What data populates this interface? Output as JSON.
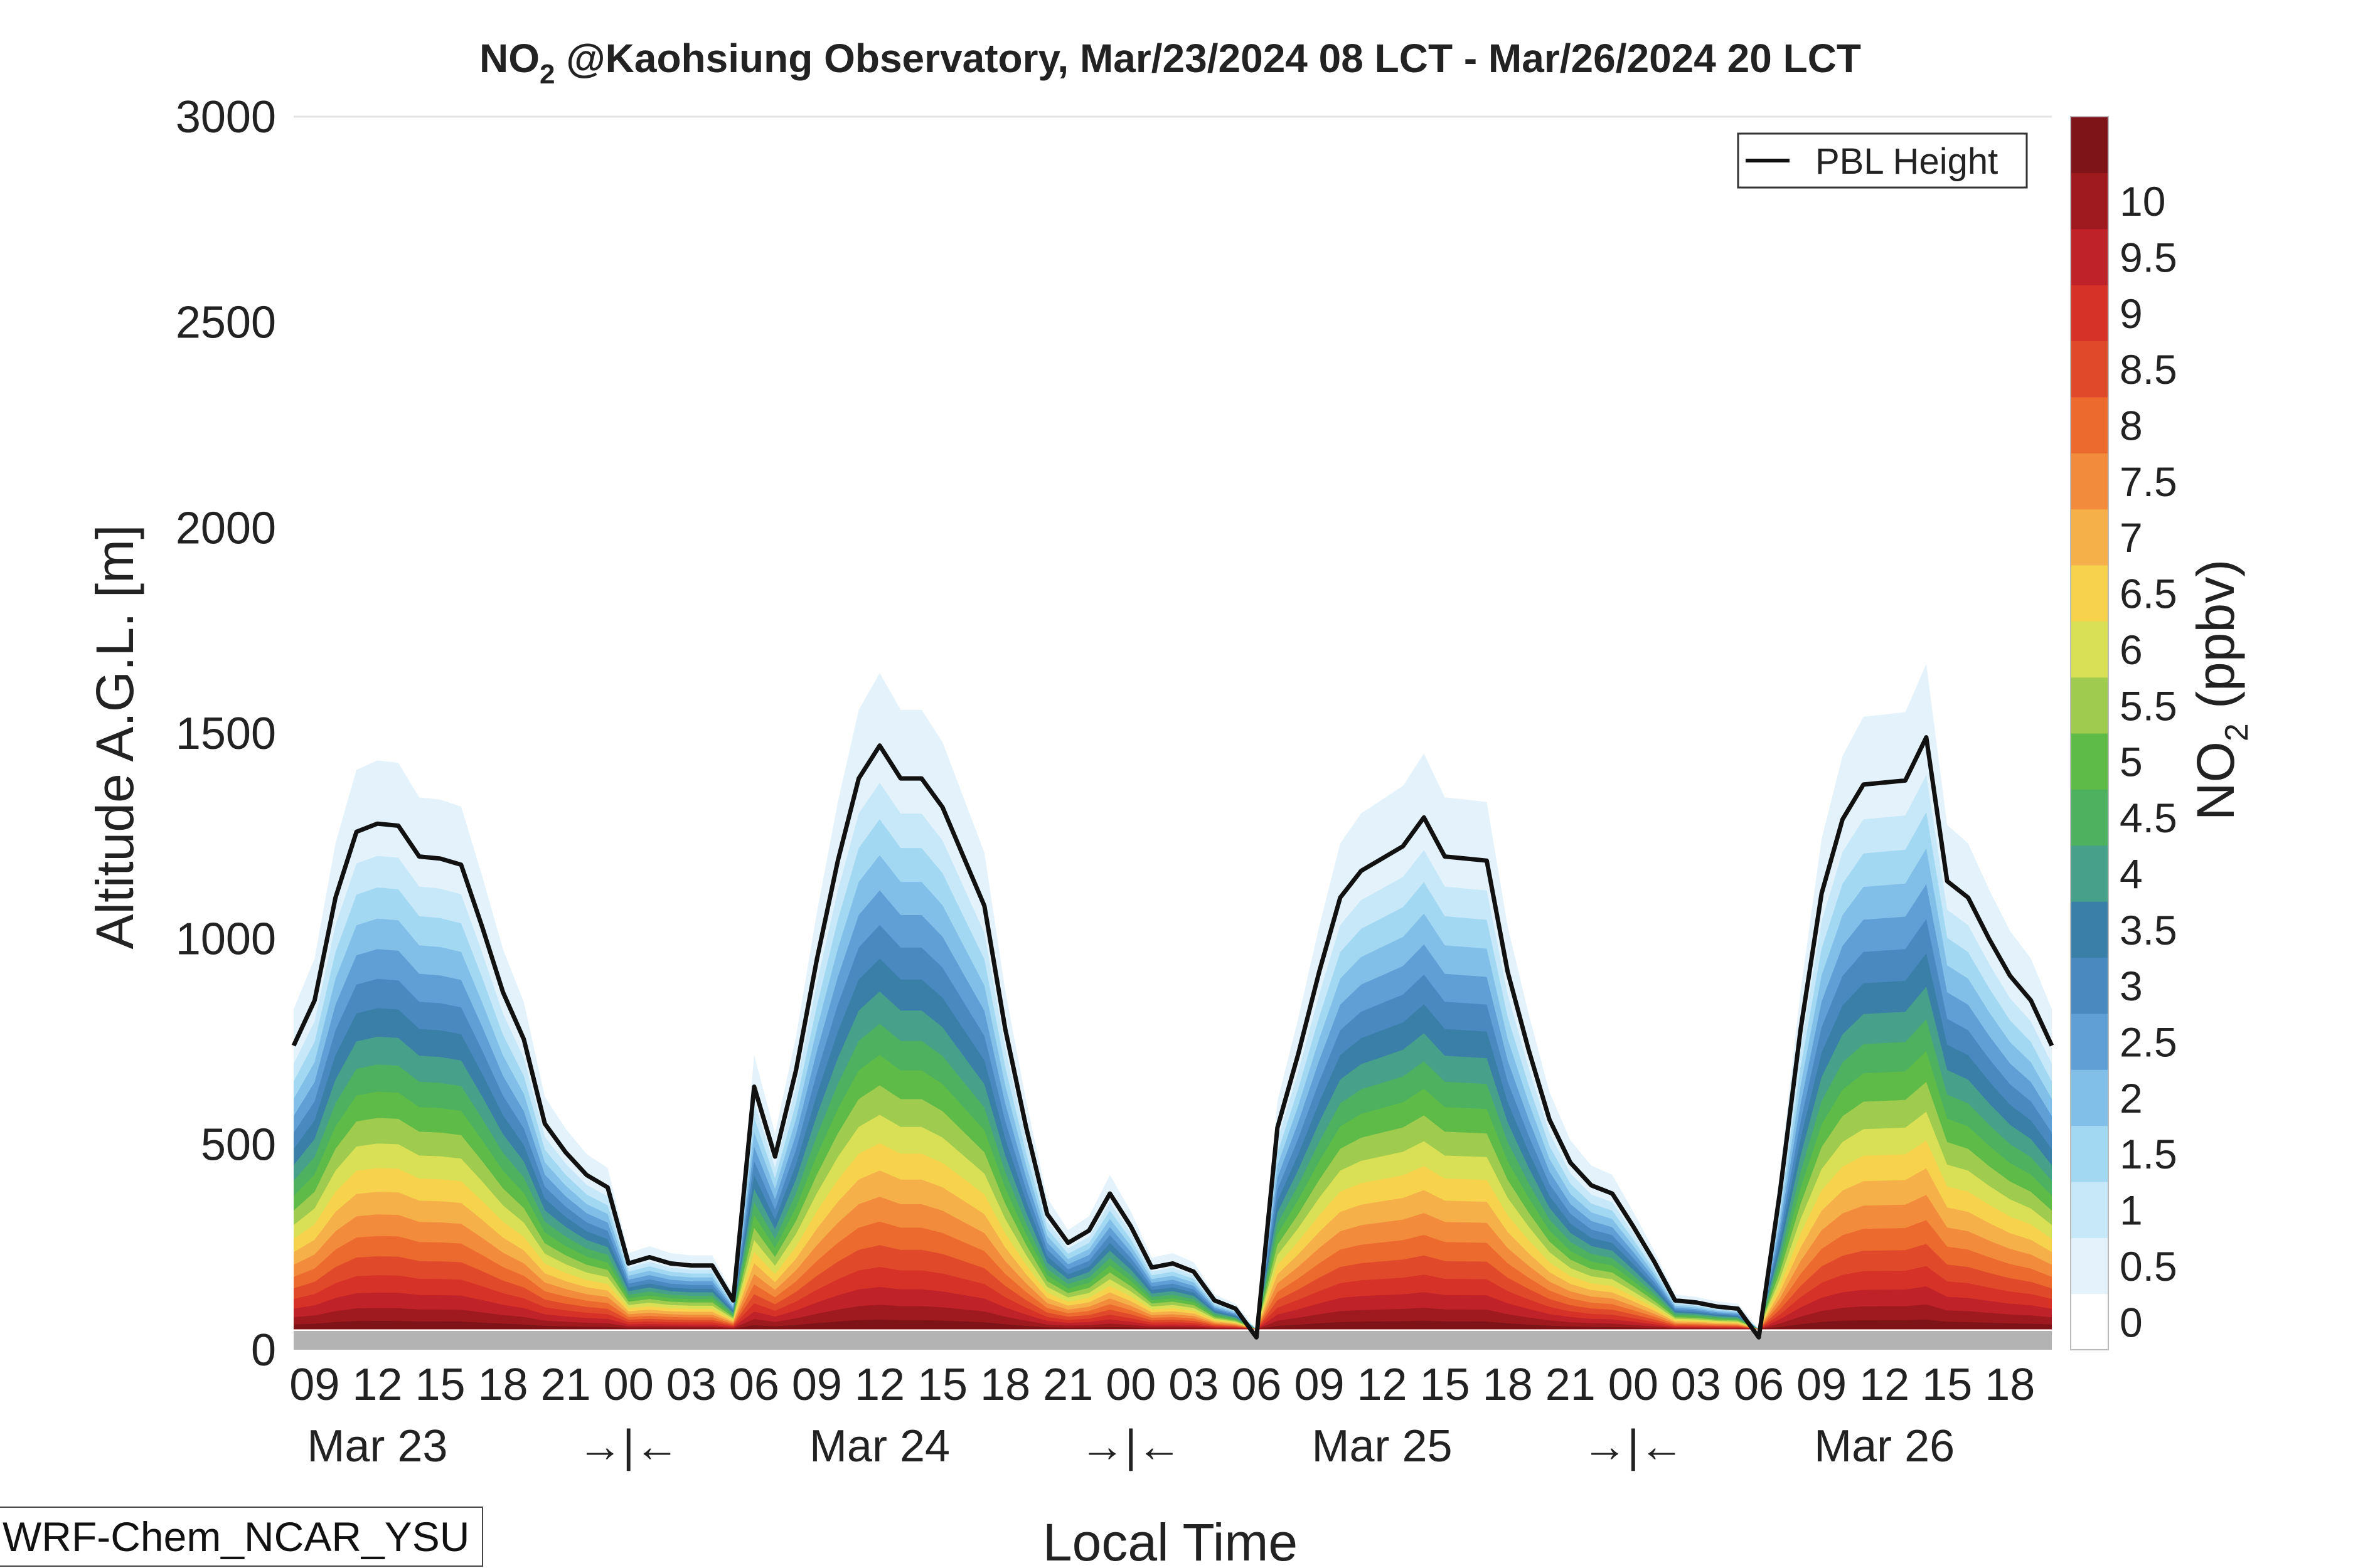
{
  "chart_data": {
    "type": "heatmap",
    "title_prefix": "NO",
    "title_sub": "2",
    "title_suffix": " @Kaohsiung Observatory, Mar/23/2024 08 LCT - Mar/26/2024 20 LCT",
    "xlabel": "Local Time",
    "ylabel": "Altitude A.G.L. [m]",
    "ylim": [
      0,
      3000
    ],
    "yticks": [
      "0",
      "500",
      "1000",
      "1500",
      "2000",
      "2500",
      "3000"
    ],
    "x_hours_first": 8,
    "x_hours_last": 92,
    "xtick_labels": [
      "09",
      "12",
      "15",
      "18",
      "21",
      "00",
      "03",
      "06",
      "09",
      "12",
      "15",
      "18",
      "21",
      "00",
      "03",
      "06",
      "09",
      "12",
      "15",
      "18",
      "21",
      "00",
      "03",
      "06",
      "09",
      "12",
      "15",
      "18"
    ],
    "day_labels": [
      "Mar 23",
      "→|←",
      "Mar 24",
      "→|←",
      "Mar 25",
      "→|←",
      "Mar 26"
    ],
    "colorbar": {
      "label_prefix": "NO",
      "label_sub": "2",
      "label_suffix": " (ppbv)",
      "tick_labels": [
        "0",
        "0.5",
        "1",
        "1.5",
        "2",
        "2.5",
        "3",
        "3.5",
        "4",
        "4.5",
        "5",
        "5.5",
        "6",
        "6.5",
        "7",
        "7.5",
        "8",
        "8.5",
        "9",
        "9.5",
        "10"
      ],
      "colors": [
        "#ffffff",
        "#e4f3fb",
        "#c7e8f8",
        "#a3d8f3",
        "#82bfe8",
        "#5f9fd6",
        "#4a88c0",
        "#3a7fa8",
        "#47a08a",
        "#4db160",
        "#5fbb48",
        "#9fcc4f",
        "#d9e055",
        "#f6d24d",
        "#f5b04a",
        "#f28b3b",
        "#ec6a2e",
        "#e04a2a",
        "#d63228",
        "#c0222a",
        "#9f1a1f",
        "#7e1318"
      ]
    },
    "legend": {
      "label": "PBL Height",
      "placement": "top-right"
    },
    "series": [
      {
        "name": "PBL Height",
        "x_hours": [
          8,
          9,
          10,
          11,
          12,
          13,
          14,
          15,
          16,
          17,
          18,
          19,
          20,
          21,
          22,
          23,
          24,
          25,
          26,
          27,
          28,
          29,
          30,
          31,
          32,
          33,
          34,
          35,
          36,
          37,
          38,
          39,
          40,
          41,
          42,
          43,
          44,
          45,
          46,
          47,
          48,
          49,
          50,
          51,
          52,
          53,
          54,
          55,
          56,
          57,
          58,
          59,
          60,
          61,
          62,
          63,
          64,
          65,
          66,
          67,
          68,
          69,
          70,
          71,
          72,
          73,
          74,
          75,
          76,
          77,
          78,
          79,
          80,
          81,
          82,
          83,
          84,
          85,
          86,
          87,
          88,
          89,
          90,
          91,
          92
        ],
        "values": [
          740,
          850,
          1100,
          1260,
          1280,
          1275,
          1200,
          1195,
          1180,
          1030,
          870,
          755,
          550,
          480,
          425,
          395,
          210,
          225,
          210,
          205,
          205,
          120,
          640,
          470,
          680,
          950,
          1190,
          1390,
          1470,
          1390,
          1390,
          1320,
          1200,
          1080,
          780,
          540,
          330,
          260,
          290,
          380,
          300,
          200,
          210,
          190,
          120,
          100,
          30,
          540,
          720,
          920,
          1100,
          1165,
          1195,
          1225,
          1295,
          1200,
          1195,
          1190,
          920,
          730,
          560,
          455,
          400,
          380,
          300,
          215,
          120,
          115,
          105,
          100,
          30,
          380,
          780,
          1110,
          1290,
          1375,
          1380,
          1385,
          1490,
          1140,
          1100,
          1000,
          910,
          850,
          740
        ]
      }
    ],
    "ground_value_m": 50
  },
  "footer": {
    "model_label": "WRF-Chem_NCAR_YSU"
  }
}
